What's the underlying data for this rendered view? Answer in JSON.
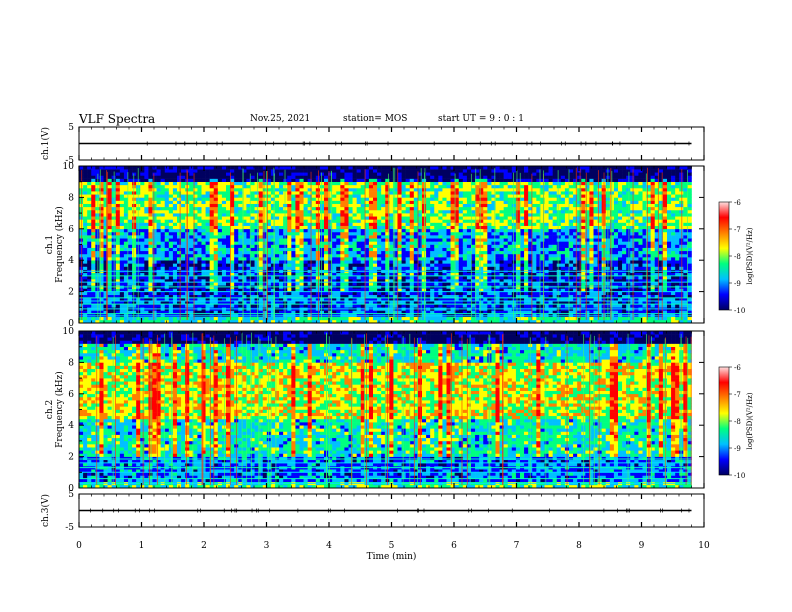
{
  "header": {
    "title": "VLF Spectra",
    "date": "Nov.25, 2021",
    "station": "station= MOS",
    "start_ut": "start  UT =  9 : 0  : 1"
  },
  "colors": {
    "colormap": [
      "#000060",
      "#0000ff",
      "#00c0ff",
      "#00ff80",
      "#ffff00",
      "#ff8000",
      "#ff0000",
      "#ffffff"
    ]
  },
  "chart_data": [
    {
      "id": "ch1-waveform",
      "type": "line",
      "ylabel": "ch.1(V)",
      "ylim": [
        -5,
        5
      ],
      "y_ticks": [
        "5",
        "-5"
      ],
      "x": [
        0,
        9.8
      ],
      "y": [
        0,
        0
      ]
    },
    {
      "id": "ch1-spectrogram",
      "type": "heatmap",
      "ylabel": "ch.1\nFrequency (kHz)",
      "ylim": [
        0,
        10
      ],
      "y_ticks": [
        "0",
        "2",
        "4",
        "6",
        "8",
        "10"
      ],
      "xlim": [
        0,
        10
      ],
      "data_xmax": 9.8,
      "colorbar": {
        "label": "log(PSD)(V²/Hz)",
        "range": [
          -10,
          -6
        ],
        "ticks": [
          "-6",
          "-7",
          "-8",
          "-9",
          "-10"
        ]
      },
      "band_intensity": [
        {
          "f": [
            0.0,
            0.4
          ],
          "v": -8.2
        },
        {
          "f": [
            0.4,
            2.0
          ],
          "v": -9.2
        },
        {
          "f": [
            2.0,
            4.0
          ],
          "v": -9.4
        },
        {
          "f": [
            4.0,
            6.0
          ],
          "v": -8.8
        },
        {
          "f": [
            6.0,
            9.0
          ],
          "v": -7.8
        },
        {
          "f": [
            9.0,
            10.0
          ],
          "v": -10.0
        }
      ],
      "lines_khz": [
        0.45,
        0.6,
        0.9,
        1.2,
        1.4,
        1.6,
        2.0,
        2.3,
        2.6,
        3.0,
        3.3
      ]
    },
    {
      "id": "ch2-spectrogram",
      "type": "heatmap",
      "ylabel": "ch.2\nFrequency (kHz)",
      "ylim": [
        0,
        10
      ],
      "y_ticks": [
        "0",
        "2",
        "4",
        "6",
        "8",
        "10"
      ],
      "xlim": [
        0,
        10
      ],
      "data_xmax": 9.8,
      "colorbar": {
        "label": "log(PSD)(V²/Hz)",
        "range": [
          -10,
          -6
        ],
        "ticks": [
          "-6",
          "-7",
          "-8",
          "-9",
          "-10"
        ]
      },
      "band_intensity": [
        {
          "f": [
            0.0,
            0.4
          ],
          "v": -8.0
        },
        {
          "f": [
            0.4,
            2.0
          ],
          "v": -9.0
        },
        {
          "f": [
            2.0,
            4.5
          ],
          "v": -8.3
        },
        {
          "f": [
            4.5,
            8.0
          ],
          "v": -7.4
        },
        {
          "f": [
            8.0,
            9.3
          ],
          "v": -8.3
        },
        {
          "f": [
            9.3,
            10.0
          ],
          "v": -10.0
        }
      ],
      "lines_khz": [
        0.3,
        0.6,
        1.0,
        1.3,
        1.6,
        1.85
      ]
    },
    {
      "id": "ch3-waveform",
      "type": "line",
      "ylabel": "ch.3(V)",
      "ylim": [
        -5,
        5
      ],
      "y_ticks": [
        "5",
        "-5"
      ],
      "x": [
        0,
        9.8
      ],
      "y": [
        0,
        0
      ]
    }
  ],
  "xaxis": {
    "label": "Time (min)",
    "range": [
      0,
      10
    ],
    "ticks": [
      "0",
      "1",
      "2",
      "3",
      "4",
      "5",
      "6",
      "7",
      "8",
      "9",
      "10"
    ]
  }
}
